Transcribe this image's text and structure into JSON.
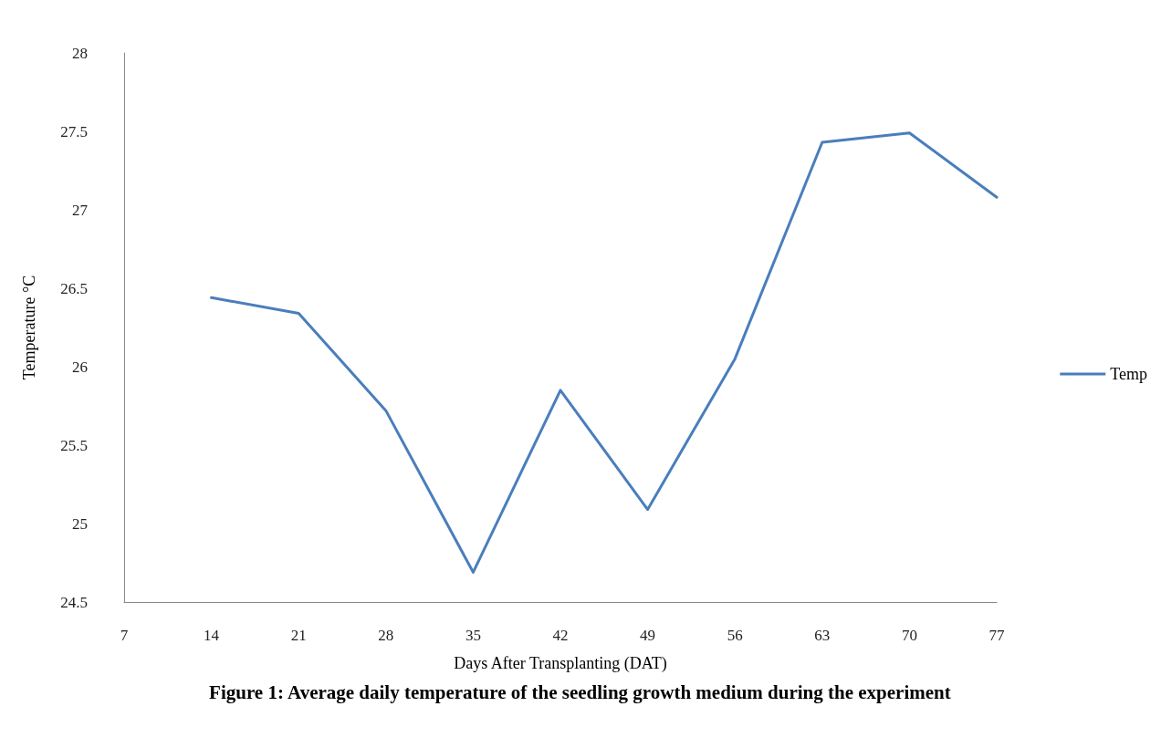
{
  "chart_data": {
    "type": "line",
    "xlabel": "Days After Transplanting (DAT)",
    "ylabel": "Temperature °C",
    "x": [
      14,
      21,
      28,
      35,
      42,
      49,
      56,
      63,
      70,
      77
    ],
    "series": [
      {
        "name": "Temp",
        "color": "#4a7ebb",
        "values": [
          26.44,
          26.34,
          25.72,
          24.69,
          25.85,
          25.09,
          26.05,
          27.43,
          27.49,
          27.08
        ]
      }
    ],
    "xlim": [
      7,
      77
    ],
    "xticks": [
      7,
      14,
      21,
      28,
      35,
      42,
      49,
      56,
      63,
      70,
      77
    ],
    "ylim": [
      24.5,
      28
    ],
    "yticks": [
      24.5,
      25,
      25.5,
      26,
      26.5,
      27,
      27.5,
      28
    ],
    "grid": false,
    "legend": "right",
    "marker": "none",
    "line_style": "solid",
    "annotations": [
      "Figure 1: Average daily temperature of the seedling growth medium during the experiment"
    ]
  }
}
